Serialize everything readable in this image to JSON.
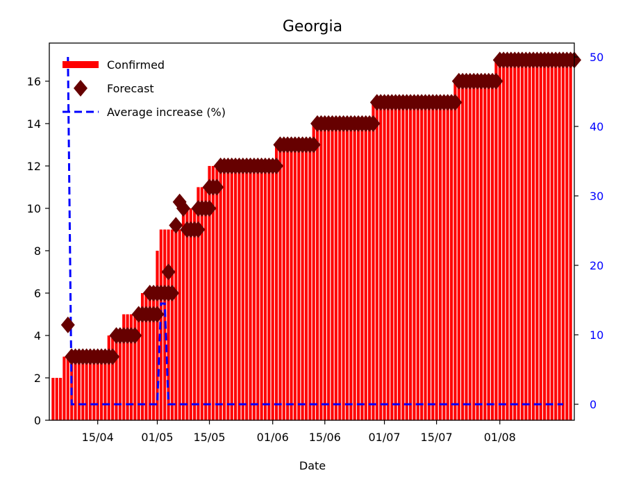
{
  "chart_data": {
    "type": "bar",
    "title": "Georgia",
    "xlabel": "Date",
    "ylabel": "",
    "ylabel_right": "",
    "x_start": "2020-04-03",
    "x_end": "2020-08-20",
    "xlim": [
      "2020-04-02",
      "2020-08-21"
    ],
    "ylim": [
      0,
      17.8
    ],
    "ylim_right": [
      -2.3,
      52
    ],
    "x_ticks": [
      {
        "date": "2020-04-15",
        "label": "15/04"
      },
      {
        "date": "2020-05-01",
        "label": "01/05"
      },
      {
        "date": "2020-05-15",
        "label": "15/05"
      },
      {
        "date": "2020-06-01",
        "label": "01/06"
      },
      {
        "date": "2020-06-15",
        "label": "15/06"
      },
      {
        "date": "2020-07-01",
        "label": "01/07"
      },
      {
        "date": "2020-07-15",
        "label": "15/07"
      },
      {
        "date": "2020-08-01",
        "label": "01/08"
      }
    ],
    "y_ticks": [
      0,
      2,
      4,
      6,
      8,
      10,
      12,
      14,
      16
    ],
    "y_ticks_right": [
      0,
      10,
      20,
      30,
      40,
      50
    ],
    "confirmed_steps": [
      {
        "from": "2020-04-03",
        "value": 2
      },
      {
        "from": "2020-04-06",
        "value": 3
      },
      {
        "from": "2020-04-18",
        "value": 4
      },
      {
        "from": "2020-04-22",
        "value": 5
      },
      {
        "from": "2020-04-27",
        "value": 6
      },
      {
        "from": "2020-05-01",
        "value": 8
      },
      {
        "from": "2020-05-02",
        "value": 9
      },
      {
        "from": "2020-05-08",
        "value": 10
      },
      {
        "from": "2020-05-12",
        "value": 11
      },
      {
        "from": "2020-05-15",
        "value": 12
      },
      {
        "from": "2020-06-02",
        "value": 13
      },
      {
        "from": "2020-06-12",
        "value": 14
      },
      {
        "from": "2020-06-28",
        "value": 15
      },
      {
        "from": "2020-07-20",
        "value": 16
      },
      {
        "from": "2020-07-31",
        "value": 17
      }
    ],
    "forecast_points": [
      {
        "date": "2020-04-07",
        "value": 4.5
      },
      {
        "from": "2020-04-08",
        "to": "2020-04-19",
        "value": 3
      },
      {
        "from": "2020-04-20",
        "to": "2020-04-25",
        "value": 4
      },
      {
        "from": "2020-04-26",
        "to": "2020-05-01",
        "value": 5
      },
      {
        "from": "2020-04-29",
        "to": "2020-05-05",
        "value": 6
      },
      {
        "date": "2020-05-04",
        "value": 7
      },
      {
        "date": "2020-05-06",
        "value": 9.2
      },
      {
        "date": "2020-05-07",
        "value": 10.3
      },
      {
        "date": "2020-05-08",
        "value": 10
      },
      {
        "from": "2020-05-09",
        "to": "2020-05-12",
        "value": 9
      },
      {
        "from": "2020-05-12",
        "to": "2020-05-15",
        "value": 10
      },
      {
        "from": "2020-05-15",
        "to": "2020-05-17",
        "value": 11
      },
      {
        "from": "2020-05-18",
        "to": "2020-06-02",
        "value": 12
      },
      {
        "from": "2020-06-03",
        "to": "2020-06-12",
        "value": 13
      },
      {
        "from": "2020-06-13",
        "to": "2020-06-28",
        "value": 14
      },
      {
        "from": "2020-06-29",
        "to": "2020-07-20",
        "value": 15
      },
      {
        "from": "2020-07-21",
        "to": "2020-07-31",
        "value": 16
      },
      {
        "from": "2020-08-01",
        "to": "2020-08-21",
        "value": 17
      }
    ],
    "average_increase": [
      {
        "date": "2020-04-07",
        "value": 50
      },
      {
        "date": "2020-04-08",
        "value": 0
      },
      {
        "date": "2020-05-01",
        "value": 0
      },
      {
        "date": "2020-05-02",
        "value": 14.5
      },
      {
        "date": "2020-05-03",
        "value": 14.5
      },
      {
        "date": "2020-05-04",
        "value": 0
      },
      {
        "date": "2020-08-18",
        "value": 0
      }
    ],
    "legend": {
      "placement": "top-left",
      "entries": [
        {
          "label": "Confirmed",
          "kind": "thick-line",
          "color": "#ff0000"
        },
        {
          "label": "Forecast",
          "kind": "diamond",
          "color": "#660000"
        },
        {
          "label": "Average increase (%)",
          "kind": "dashed-line",
          "color": "#0000ff"
        }
      ]
    },
    "colors": {
      "confirmed": "#ff0000",
      "forecast": "#660000",
      "average": "#0000ff",
      "right_axis": "#0000ff"
    }
  }
}
